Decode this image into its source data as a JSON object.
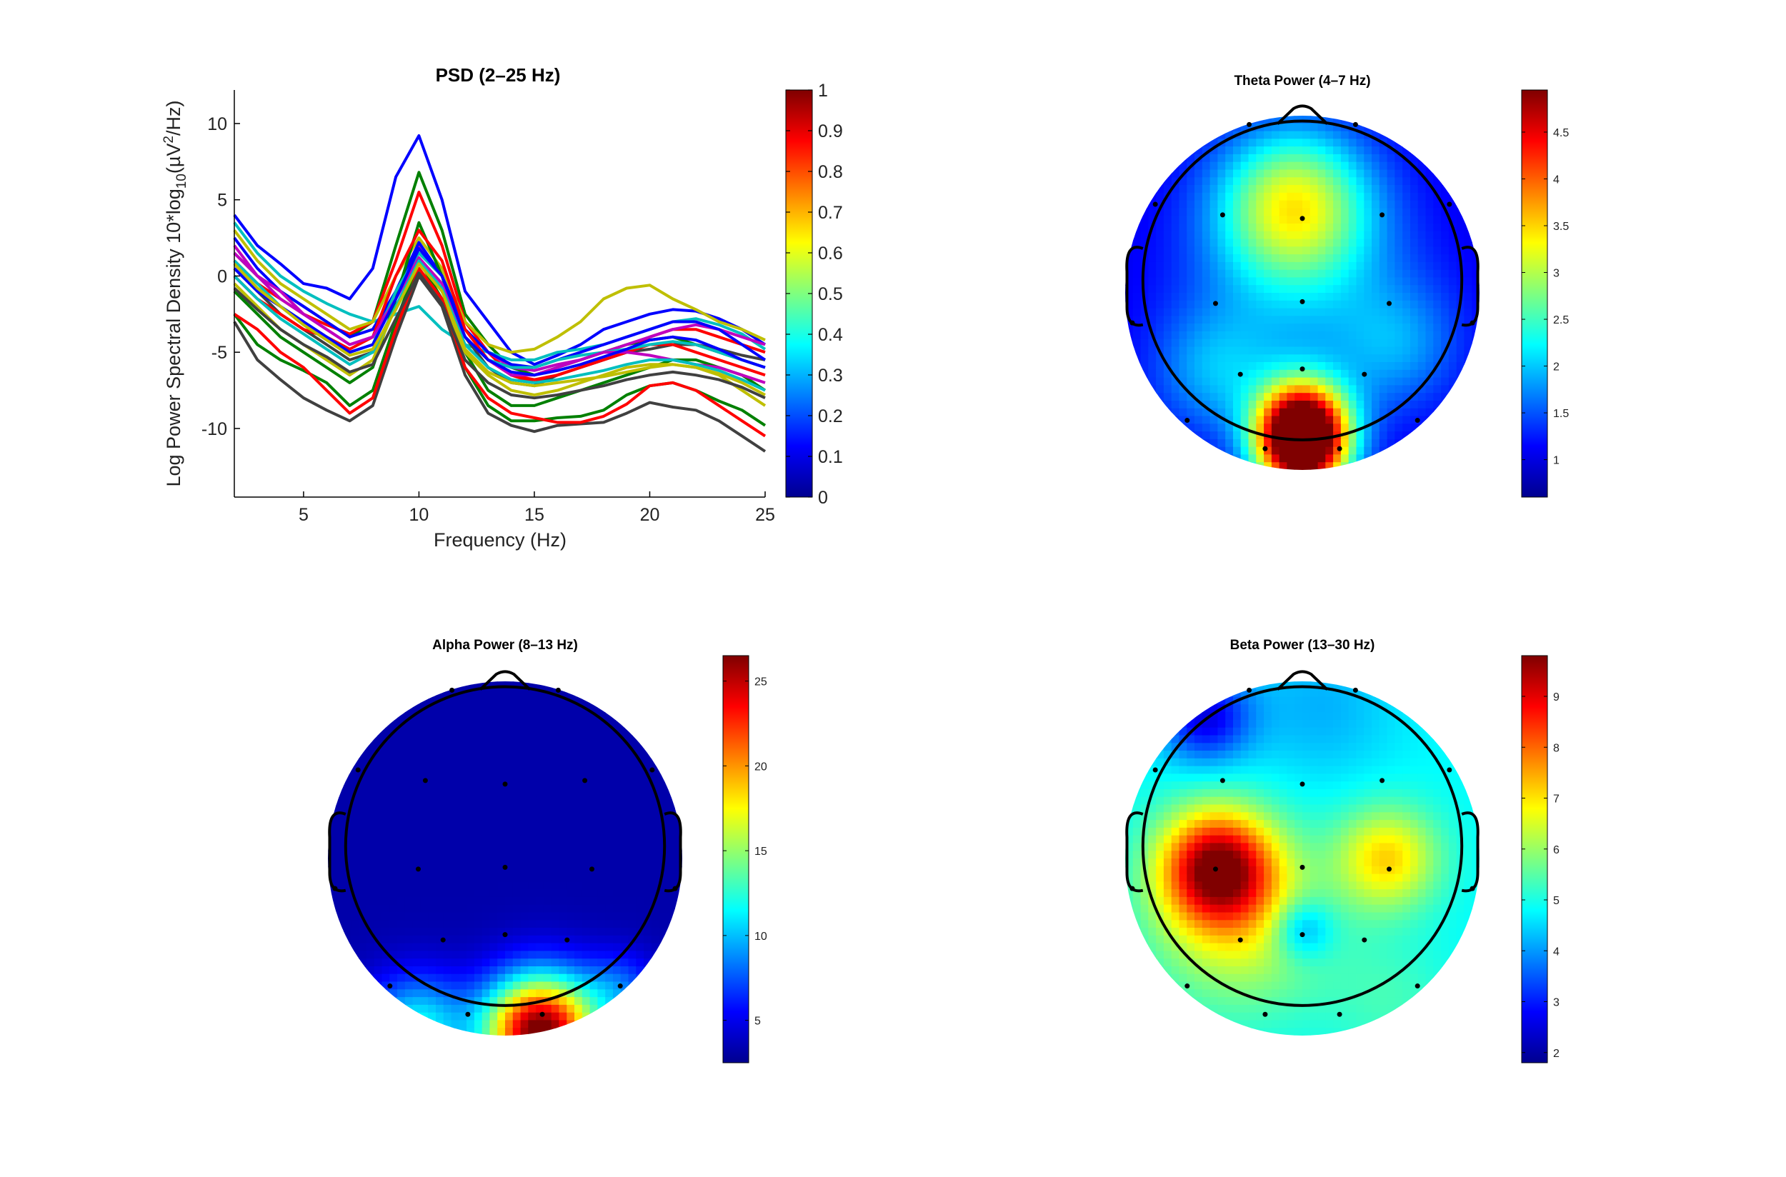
{
  "figure": {
    "colors": {
      "axis": "#000000",
      "head_outline": "#000000",
      "contour": "#404040"
    }
  },
  "chart_data": [
    {
      "type": "line",
      "title": "PSD (2–25 Hz)",
      "xlabel": "Frequency (Hz)",
      "ylabel_main": "Log Power Spectral Density 10*log",
      "ylabel_sub": "10",
      "ylabel_tail": "(µV",
      "ylabel_sup": "2",
      "ylabel_end": "/Hz)",
      "xlim": [
        2,
        25
      ],
      "ylim": [
        -14.5,
        12.2
      ],
      "xticks": [
        5,
        10,
        15,
        20,
        25
      ],
      "yticks": [
        -10,
        -5,
        0,
        5,
        10
      ],
      "x": [
        2,
        3,
        4,
        5,
        6,
        7,
        8,
        9,
        10,
        11,
        12,
        13,
        14,
        15,
        16,
        17,
        18,
        19,
        20,
        21,
        22,
        23,
        24,
        25
      ],
      "colorbar": {
        "colormap": "jet",
        "min": 0,
        "max": 1,
        "ticks": [
          0,
          0.1,
          0.2,
          0.3,
          0.4,
          0.5,
          0.6,
          0.7,
          0.8,
          0.9,
          1
        ]
      },
      "series": [
        {
          "color": "#0000ff",
          "values": [
            4,
            2,
            0.8,
            -0.5,
            -0.8,
            -1.5,
            0.5,
            6.5,
            9.2,
            5,
            -1,
            -3,
            -5,
            -5.8,
            -5.2,
            -4.5,
            -3.5,
            -3,
            -2.5,
            -2.2,
            -2.3,
            -2.8,
            -3.5,
            -4.5
          ]
        },
        {
          "color": "#008000",
          "values": [
            1.5,
            0,
            -1,
            -2,
            -3,
            -4,
            -3,
            2,
            6.8,
            3,
            -2.5,
            -4.5,
            -6,
            -6.5,
            -6,
            -5.5,
            -5,
            -4.5,
            -4.2,
            -4,
            -4.5,
            -5,
            -5.5,
            -6
          ]
        },
        {
          "color": "#ff0000",
          "values": [
            1,
            -0.5,
            -1.5,
            -2.5,
            -3.2,
            -3.8,
            -3,
            1,
            5.5,
            2,
            -3,
            -5,
            -6.5,
            -7,
            -6.5,
            -6,
            -5.5,
            -5,
            -4,
            -3.5,
            -3.5,
            -4,
            -4.5,
            -5
          ]
        },
        {
          "color": "#00bfbf",
          "values": [
            3.5,
            1.5,
            0,
            -1,
            -1.8,
            -2.5,
            -3,
            -2.5,
            -2,
            -3.5,
            -4.5,
            -5,
            -5.5,
            -5.5,
            -5,
            -4.8,
            -4.5,
            -4,
            -3.5,
            -3,
            -2.8,
            -3.2,
            -3.8,
            -4.8
          ]
        },
        {
          "color": "#bfbf00",
          "values": [
            3,
            1,
            -0.5,
            -1.5,
            -2.5,
            -3.5,
            -3,
            0,
            2.5,
            0.5,
            -3,
            -4.5,
            -5,
            -4.8,
            -4,
            -3,
            -1.5,
            -0.8,
            -0.6,
            -1.5,
            -2.2,
            -3,
            -3.5,
            -4.2
          ]
        },
        {
          "color": "#bf00bf",
          "values": [
            2,
            0,
            -1.5,
            -2.5,
            -3.5,
            -4.5,
            -4,
            -1,
            2,
            0,
            -3.5,
            -5,
            -6,
            -6.2,
            -5.8,
            -5.5,
            -5,
            -4.5,
            -4,
            -3.5,
            -3.2,
            -3.5,
            -4,
            -4.5
          ]
        },
        {
          "color": "#404040",
          "values": [
            0.5,
            -1,
            -2.5,
            -3.5,
            -4.5,
            -5.5,
            -5,
            -2,
            1,
            -1,
            -4,
            -6,
            -7,
            -7.2,
            -6.5,
            -6,
            -5.5,
            -5,
            -4.8,
            -4.5,
            -4.5,
            -4.8,
            -5.2,
            -5.5
          ]
        },
        {
          "color": "#0000ff",
          "values": [
            2.5,
            0.5,
            -1,
            -2,
            -3,
            -4,
            -3.5,
            -1,
            2.2,
            0,
            -3.5,
            -5,
            -5.8,
            -6,
            -5.5,
            -5,
            -4.5,
            -4,
            -3.5,
            -3,
            -3,
            -3.5,
            -4.5,
            -5.5
          ]
        },
        {
          "color": "#008000",
          "values": [
            -1,
            -2.5,
            -4,
            -5,
            -6,
            -7,
            -6,
            -1.5,
            3.5,
            0,
            -5,
            -7.5,
            -8.5,
            -8.5,
            -8,
            -7.5,
            -7,
            -6.5,
            -6,
            -5.5,
            -5.5,
            -6,
            -6.5,
            -7.5
          ]
        },
        {
          "color": "#ff0000",
          "values": [
            0,
            -1.5,
            -2.5,
            -3.5,
            -4,
            -4.8,
            -4,
            0,
            3,
            1,
            -3.5,
            -5.5,
            -6.5,
            -6.8,
            -6.5,
            -6,
            -5.5,
            -5,
            -4.5,
            -4.5,
            -5,
            -5.5,
            -6,
            -6.5
          ]
        },
        {
          "color": "#00bfbf",
          "values": [
            1,
            -0.5,
            -2,
            -3,
            -4,
            -5,
            -4.5,
            -1,
            1.5,
            0,
            -4,
            -5.5,
            -6,
            -6,
            -5.5,
            -5.2,
            -5,
            -4.8,
            -4.5,
            -4.3,
            -4.5,
            -5,
            -5.5,
            -6
          ]
        },
        {
          "color": "#bfbf00",
          "values": [
            -0.5,
            -2,
            -3.5,
            -4.5,
            -5.5,
            -6.5,
            -5.5,
            -2,
            0.5,
            -1.5,
            -5,
            -6.5,
            -7.5,
            -7.8,
            -7.5,
            -7,
            -6.5,
            -6,
            -5.8,
            -5.8,
            -6,
            -6.5,
            -7.5,
            -8.5
          ]
        },
        {
          "color": "#bf00bf",
          "values": [
            1.5,
            0,
            -1,
            -2.5,
            -3.5,
            -4.5,
            -4,
            -1.5,
            1.2,
            -0.5,
            -4,
            -5.5,
            -6.5,
            -6.5,
            -6,
            -5.5,
            -5,
            -5,
            -5.2,
            -5.5,
            -5.8,
            -6,
            -6.5,
            -7
          ]
        },
        {
          "color": "#404040",
          "values": [
            -3,
            -5.5,
            -6.8,
            -8,
            -8.8,
            -9.5,
            -8.5,
            -4,
            0,
            -2,
            -6.5,
            -9,
            -9.8,
            -10.2,
            -9.8,
            -9.7,
            -9.6,
            -9,
            -8.3,
            -8.6,
            -8.8,
            -9.5,
            -10.5,
            -11.5
          ]
        },
        {
          "color": "#0000ff",
          "values": [
            0.5,
            -1,
            -2,
            -3,
            -4,
            -5,
            -4.5,
            -1.5,
            1.8,
            0,
            -4,
            -5.5,
            -6.3,
            -6.5,
            -6.2,
            -5.8,
            -5.3,
            -4.8,
            -4.2,
            -4,
            -4.2,
            -4.8,
            -5.5,
            -6
          ]
        },
        {
          "color": "#008000",
          "values": [
            -2.5,
            -4.5,
            -5.5,
            -6.2,
            -7,
            -8.5,
            -7.5,
            -3,
            1,
            -1.5,
            -6,
            -8.5,
            -9.5,
            -9.5,
            -9.3,
            -9.2,
            -8.8,
            -7.8,
            -7.2,
            -7,
            -7.5,
            -8.2,
            -8.8,
            -9.8
          ]
        },
        {
          "color": "#ff0000",
          "values": [
            -2.5,
            -3.5,
            -5,
            -6,
            -7.5,
            -9,
            -8,
            -3.5,
            0.5,
            -1.5,
            -6,
            -8,
            -9,
            -9.3,
            -9.6,
            -9.6,
            -9.2,
            -8.4,
            -7.2,
            -7.0,
            -7.5,
            -8.5,
            -9.5,
            -10.5
          ]
        },
        {
          "color": "#00bfbf",
          "values": [
            0,
            -1.5,
            -2.8,
            -3.8,
            -4.8,
            -5.8,
            -5,
            -2,
            1,
            -0.8,
            -4.5,
            -6,
            -6.8,
            -7,
            -6.8,
            -6.5,
            -6.2,
            -5.8,
            -5.5,
            -5.5,
            -5.8,
            -6.2,
            -6.8,
            -7.5
          ]
        },
        {
          "color": "#bfbf00",
          "values": [
            0.8,
            -0.8,
            -2,
            -3.2,
            -4.2,
            -5.2,
            -4.8,
            -2.2,
            0.8,
            -1,
            -4.8,
            -6.3,
            -7,
            -7.2,
            -7,
            -6.8,
            -6.6,
            -6.3,
            -6,
            -5.8,
            -6,
            -6.4,
            -7,
            -7.8
          ]
        },
        {
          "color": "#404040",
          "values": [
            -0.8,
            -2.2,
            -3.5,
            -4.5,
            -5.3,
            -6.3,
            -5.8,
            -2.8,
            0.2,
            -1.8,
            -5.5,
            -7,
            -7.8,
            -8,
            -7.8,
            -7.5,
            -7.2,
            -6.8,
            -6.5,
            -6.3,
            -6.5,
            -6.8,
            -7.3,
            -8
          ]
        }
      ]
    },
    {
      "type": "heatmap",
      "title": "Theta Power (4–7 Hz)",
      "colorbar": {
        "colormap": "jet",
        "min": 0.6,
        "max": 4.95,
        "ticks": [
          1,
          1.5,
          2,
          2.5,
          3,
          3.5,
          4,
          4.5
        ]
      },
      "background": 1.0,
      "sources": [
        {
          "x": -0.05,
          "y": 0.5,
          "power": 2.0,
          "spread": 0.3
        },
        {
          "x": 0.0,
          "y": -0.75,
          "power": 3.9,
          "spread": 0.18
        },
        {
          "x": 0.0,
          "y": -0.95,
          "power": 2.5,
          "spread": 0.18
        },
        {
          "x": 0.0,
          "y": 0.0,
          "power": 0.7,
          "spread": 0.5
        },
        {
          "x": 0.55,
          "y": -0.3,
          "power": 0.6,
          "spread": 0.25
        },
        {
          "x": -0.5,
          "y": -0.45,
          "power": 0.7,
          "spread": 0.25
        }
      ]
    },
    {
      "type": "heatmap",
      "title": "Alpha Power (8–13 Hz)",
      "colorbar": {
        "colormap": "jet",
        "min": 2.5,
        "max": 26.5,
        "ticks": [
          5,
          10,
          15,
          20,
          25
        ]
      },
      "background": 3.5,
      "sources": [
        {
          "x": 0.2,
          "y": -0.98,
          "power": 24,
          "spread": 0.22
        },
        {
          "x": -0.5,
          "y": -0.95,
          "power": 8,
          "spread": 0.2
        },
        {
          "x": 0.65,
          "y": -0.75,
          "power": 4,
          "spread": 0.15
        }
      ]
    },
    {
      "type": "heatmap",
      "title": "Beta Power (13–30 Hz)",
      "colorbar": {
        "colormap": "jet",
        "min": 1.8,
        "max": 9.8,
        "ticks": [
          2,
          3,
          4,
          5,
          6,
          7,
          8,
          9
        ]
      },
      "background": 4.8,
      "sources": [
        {
          "x": -0.48,
          "y": -0.05,
          "power": 4.5,
          "spread": 0.22
        },
        {
          "x": -0.35,
          "y": -0.35,
          "power": 1.8,
          "spread": 0.35
        },
        {
          "x": 0.48,
          "y": 0.0,
          "power": 2.3,
          "spread": 0.2
        },
        {
          "x": 0.0,
          "y": -0.4,
          "power": -1.5,
          "spread": 0.12
        },
        {
          "x": -0.55,
          "y": 0.8,
          "power": -2.2,
          "spread": 0.18
        },
        {
          "x": 0.1,
          "y": 0.85,
          "power": -0.6,
          "spread": 0.3
        },
        {
          "x": 0.5,
          "y": -0.8,
          "power": 0.5,
          "spread": 0.25
        }
      ]
    }
  ]
}
